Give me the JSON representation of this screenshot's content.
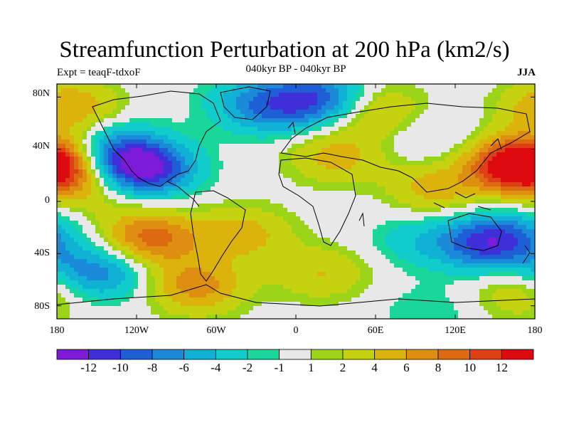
{
  "title": "Streamfunction Perturbation at 200 hPa (km2/s)",
  "subtitle_left": "Expt = teaqF-tdxoF",
  "subtitle_center": "040kyr BP - 040kyr BP",
  "subtitle_right": "JJA",
  "lat_labels": [
    "80N",
    "40N",
    "0",
    "40S",
    "80S"
  ],
  "lon_labels": [
    "180",
    "120W",
    "60W",
    "0",
    "60E",
    "120E",
    "180"
  ],
  "colorbar": {
    "colors": [
      "#7d1ad8",
      "#3f2fd9",
      "#1f5fd6",
      "#1a8ad9",
      "#11b1d6",
      "#10ccca",
      "#1bd69a",
      "#e8e8e8",
      "#9bd418",
      "#c6d20f",
      "#dcb20c",
      "#de8e10",
      "#dd6a12",
      "#dd4015",
      "#dd0a10"
    ],
    "labels": [
      "-12",
      "-10",
      "-8",
      "-6",
      "-4",
      "-2",
      "-1",
      "1",
      "2",
      "4",
      "6",
      "8",
      "10",
      "12"
    ]
  },
  "map_data": {
    "lon_range": [
      -180,
      180
    ],
    "lat_range": [
      -90,
      90
    ],
    "field_centers": [
      {
        "lon": -115,
        "lat": 25,
        "value": -13
      },
      {
        "lon": -140,
        "lat": 38,
        "value": -7
      },
      {
        "lon": -35,
        "lat": 75,
        "value": -4
      },
      {
        "lon": -10,
        "lat": 72,
        "value": -5
      },
      {
        "lon": 20,
        "lat": 80,
        "value": -8
      },
      {
        "lon": 100,
        "lat": 48,
        "value": -2
      },
      {
        "lon": -150,
        "lat": -55,
        "value": -8
      },
      {
        "lon": 140,
        "lat": -33,
        "value": -7
      },
      {
        "lon": 160,
        "lat": -28,
        "value": -6
      },
      {
        "lon": 90,
        "lat": -30,
        "value": -3
      },
      {
        "lon": 100,
        "lat": -85,
        "value": -2
      },
      {
        "lon": -110,
        "lat": -28,
        "value": 9
      },
      {
        "lon": -40,
        "lat": -25,
        "value": 5
      },
      {
        "lon": -75,
        "lat": -65,
        "value": 7
      },
      {
        "lon": 165,
        "lat": 28,
        "value": 11
      },
      {
        "lon": -178,
        "lat": 28,
        "value": 9
      },
      {
        "lon": -170,
        "lat": 72,
        "value": 6
      },
      {
        "lon": 30,
        "lat": 35,
        "value": 5
      },
      {
        "lon": 105,
        "lat": 10,
        "value": 5
      },
      {
        "lon": 60,
        "lat": 70,
        "value": 5
      },
      {
        "lon": 20,
        "lat": -55,
        "value": 4
      },
      {
        "lon": 170,
        "lat": -70,
        "value": 4
      },
      {
        "lon": -150,
        "lat": 8,
        "value": 3
      }
    ]
  }
}
